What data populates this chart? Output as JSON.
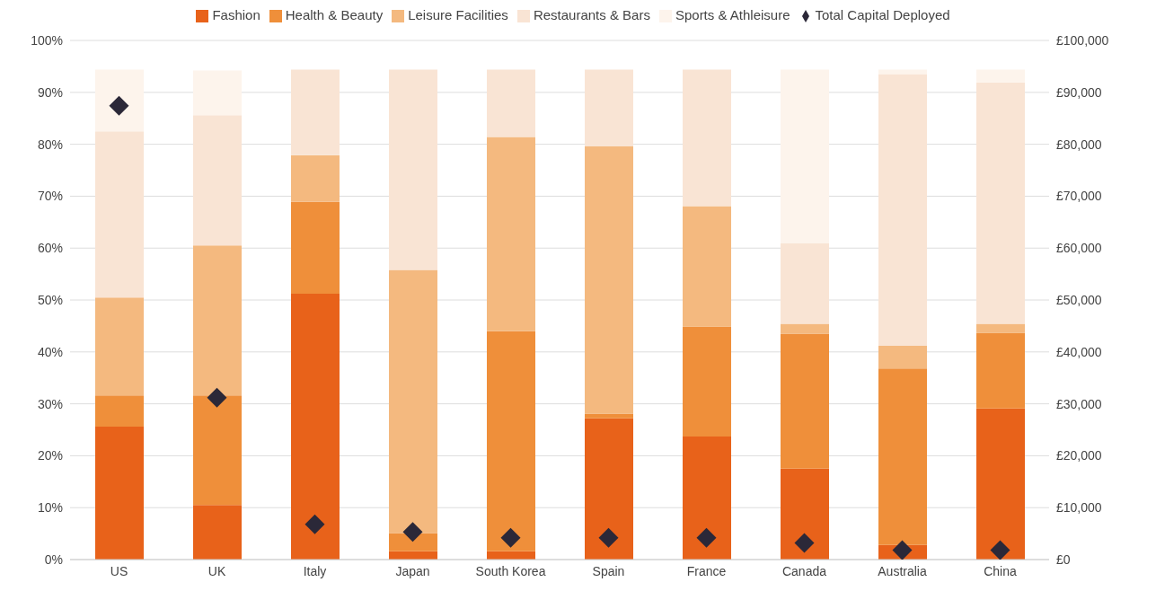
{
  "chart_data": {
    "type": "bar",
    "stacked": true,
    "legend": "top",
    "grid": "y",
    "marker": "diamond",
    "categories": [
      "US",
      "UK",
      "Italy",
      "Japan",
      "South Korea",
      "Spain",
      "France",
      "Canada",
      "Australia",
      "China"
    ],
    "series": [
      {
        "name": "Fashion",
        "color": "#e8621a",
        "values": [
          25.6,
          10.5,
          51.2,
          1.6,
          1.6,
          27.2,
          23.7,
          17.5,
          2.8,
          29.1
        ]
      },
      {
        "name": "Health & Beauty",
        "color": "#ef8f3a",
        "values": [
          6.0,
          21.1,
          17.7,
          3.5,
          42.4,
          0.9,
          21.2,
          26.0,
          34.0,
          14.6
        ]
      },
      {
        "name": "Leisure Facilities",
        "color": "#f4b97f",
        "values": [
          18.9,
          28.9,
          9.0,
          50.7,
          37.4,
          51.5,
          23.2,
          1.9,
          4.4,
          1.7
        ]
      },
      {
        "name": "Restaurants & Bars",
        "color": "#f9e4d4",
        "values": [
          32.0,
          25.1,
          16.5,
          38.6,
          13.0,
          14.8,
          26.3,
          15.5,
          52.3,
          46.5
        ]
      },
      {
        "name": "Sports & Athleisure",
        "color": "#fdf4ec",
        "values": [
          11.9,
          8.6,
          0,
          0,
          0,
          0,
          0,
          33.5,
          0.9,
          2.5
        ]
      },
      {
        "name": "Total Capital Deployed",
        "type": "scatter",
        "axis": "y2",
        "color": "#2b2838",
        "values": [
          87400,
          31200,
          6800,
          5300,
          4200,
          4200,
          4200,
          3200,
          1800,
          1800
        ]
      }
    ],
    "ylim": [
      0,
      100
    ],
    "yticks": [
      {
        "value": 0,
        "label": "0%"
      },
      {
        "value": 10,
        "label": "10%"
      },
      {
        "value": 20,
        "label": "20%"
      },
      {
        "value": 30,
        "label": "30%"
      },
      {
        "value": 40,
        "label": "40%"
      },
      {
        "value": 50,
        "label": "50%"
      },
      {
        "value": 60,
        "label": "60%"
      },
      {
        "value": 70,
        "label": "70%"
      },
      {
        "value": 80,
        "label": "80%"
      },
      {
        "value": 90,
        "label": "90%"
      },
      {
        "value": 100,
        "label": "100%"
      }
    ],
    "y2lim": [
      0,
      100000
    ],
    "y2ticks": [
      {
        "value": 0,
        "label": "£0"
      },
      {
        "value": 10000,
        "label": "£10,000"
      },
      {
        "value": 20000,
        "label": "£20,000"
      },
      {
        "value": 30000,
        "label": "£30,000"
      },
      {
        "value": 40000,
        "label": "£40,000"
      },
      {
        "value": 50000,
        "label": "£50,000"
      },
      {
        "value": 60000,
        "label": "£60,000"
      },
      {
        "value": 70000,
        "label": "£70,000"
      },
      {
        "value": 80000,
        "label": "£80,000"
      },
      {
        "value": 90000,
        "label": "£90,000"
      },
      {
        "value": 100000,
        "label": "£100,000"
      }
    ]
  }
}
